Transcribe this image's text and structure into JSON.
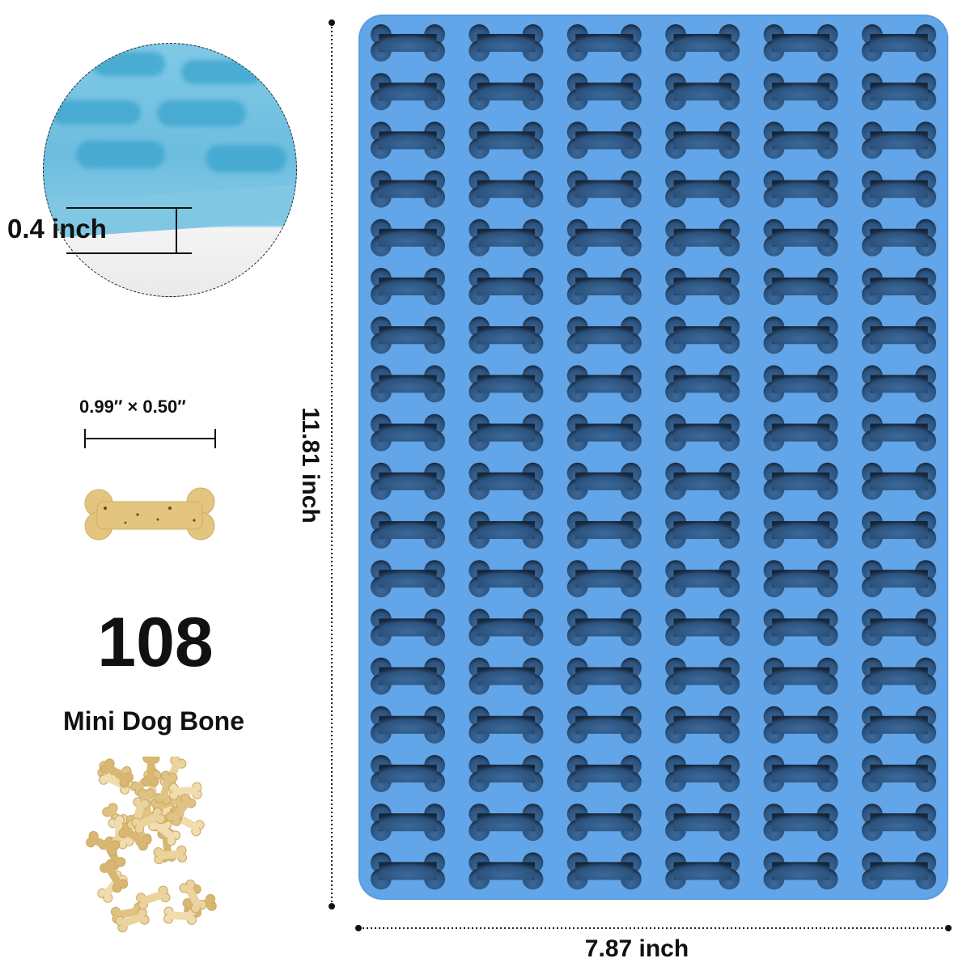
{
  "thickness_label": "0.4 inch",
  "treat_size_label": "0.99″ × 0.50″",
  "cavity_count": "108",
  "product_label": "Mini Dog Bone",
  "height_label": "11.81 inch",
  "width_label": "7.87 inch",
  "mold": {
    "columns": 6,
    "rows": 18,
    "color": "#62a5e8",
    "cavity_color": "#2c527d"
  },
  "treat_color": "#e3c27e"
}
